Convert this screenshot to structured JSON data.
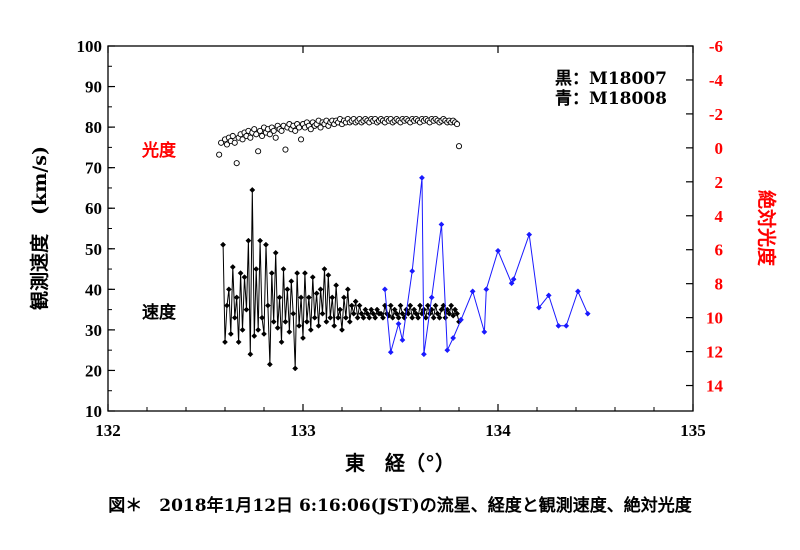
{
  "caption": "図＊　2018年1月12日 6:16:06(JST)の流星、経度と観測速度、絶対光度",
  "chart_data": {
    "type": "scatter",
    "xlabel": "東　経（°）",
    "ylabel": "観測速度　(km/s)",
    "y2label": "絶対光度",
    "xlim": [
      132,
      135
    ],
    "ylim": [
      10,
      100
    ],
    "y2lim": [
      -6,
      15.5
    ],
    "y2_inverted": true,
    "x_ticks": [
      "132",
      "133",
      "134",
      "135"
    ],
    "y_ticks": [
      "10",
      "20",
      "30",
      "40",
      "50",
      "60",
      "70",
      "80",
      "90",
      "100"
    ],
    "y2_ticks": [
      "-6",
      "-4",
      "-2",
      "0",
      "2",
      "4",
      "6",
      "8",
      "10",
      "12",
      "14"
    ],
    "legend": {
      "line1": "黒：M18007",
      "line2": "青：M18008",
      "position": "top-right"
    },
    "annotations": {
      "brightness": "光度",
      "speed": "速度"
    },
    "colors": {
      "black_series": "#000000",
      "blue_series": "#1a1aff",
      "y2_axis": "#ff0000",
      "brightness_label": "#ff0000"
    },
    "series": [
      {
        "name": "黒：M18007",
        "role": "速度",
        "color": "#000000",
        "marker": "diamond-filled",
        "points": [
          [
            132.59,
            51.0
          ],
          [
            132.6,
            27.0
          ],
          [
            132.61,
            36.0
          ],
          [
            132.62,
            40.0
          ],
          [
            132.63,
            29.0
          ],
          [
            132.64,
            45.5
          ],
          [
            132.65,
            33.0
          ],
          [
            132.66,
            38.0
          ],
          [
            132.67,
            27.0
          ],
          [
            132.68,
            44.0
          ],
          [
            132.69,
            30.0
          ],
          [
            132.7,
            43.0
          ],
          [
            132.71,
            35.0
          ],
          [
            132.72,
            52.0
          ],
          [
            132.73,
            24.0
          ],
          [
            132.74,
            64.5
          ],
          [
            132.75,
            28.5
          ],
          [
            132.76,
            45.0
          ],
          [
            132.77,
            30.0
          ],
          [
            132.78,
            52.0
          ],
          [
            132.79,
            33.0
          ],
          [
            132.8,
            29.0
          ],
          [
            132.81,
            51.0
          ],
          [
            132.82,
            36.0
          ],
          [
            132.83,
            21.5
          ],
          [
            132.84,
            44.0
          ],
          [
            132.85,
            32.0
          ],
          [
            132.86,
            49.0
          ],
          [
            132.87,
            30.5
          ],
          [
            132.88,
            38.0
          ],
          [
            132.89,
            27.0
          ],
          [
            132.9,
            45.0
          ],
          [
            132.91,
            32.0
          ],
          [
            132.92,
            40.0
          ],
          [
            132.93,
            29.5
          ],
          [
            132.94,
            42.0
          ],
          [
            132.95,
            34.0
          ],
          [
            132.96,
            20.5
          ],
          [
            132.97,
            44.0
          ],
          [
            132.98,
            31.0
          ],
          [
            132.99,
            38.0
          ],
          [
            133.0,
            28.0
          ],
          [
            133.01,
            44.0
          ],
          [
            133.02,
            32.0
          ],
          [
            133.03,
            38.0
          ],
          [
            133.04,
            30.0
          ],
          [
            133.05,
            43.0
          ],
          [
            133.06,
            33.0
          ],
          [
            133.07,
            39.0
          ],
          [
            133.08,
            31.0
          ],
          [
            133.09,
            40.0
          ],
          [
            133.1,
            34.0
          ],
          [
            133.11,
            45.0
          ],
          [
            133.12,
            32.0
          ],
          [
            133.13,
            43.5
          ],
          [
            133.14,
            33.0
          ],
          [
            133.15,
            38.0
          ],
          [
            133.16,
            31.0
          ],
          [
            133.17,
            41.0
          ],
          [
            133.18,
            33.0
          ],
          [
            133.19,
            35.0
          ],
          [
            133.2,
            30.0
          ],
          [
            133.21,
            38.0
          ],
          [
            133.22,
            33.0
          ],
          [
            133.23,
            40.0
          ],
          [
            133.24,
            32.0
          ],
          [
            133.25,
            36.0
          ],
          [
            133.26,
            34.0
          ],
          [
            133.27,
            37.0
          ],
          [
            133.28,
            33.0
          ],
          [
            133.29,
            36.0
          ],
          [
            133.3,
            34.0
          ],
          [
            133.31,
            33.0
          ],
          [
            133.32,
            35.0
          ],
          [
            133.33,
            34.0
          ],
          [
            133.34,
            33.0
          ],
          [
            133.35,
            35.0
          ],
          [
            133.36,
            34.0
          ],
          [
            133.37,
            33.0
          ],
          [
            133.38,
            35.0
          ],
          [
            133.39,
            34.0
          ],
          [
            133.4,
            34.0
          ],
          [
            133.41,
            33.0
          ],
          [
            133.42,
            36.0
          ],
          [
            133.43,
            34.0
          ],
          [
            133.44,
            33.5
          ],
          [
            133.45,
            36.0
          ],
          [
            133.46,
            33.0
          ],
          [
            133.47,
            35.0
          ],
          [
            133.48,
            34.0
          ],
          [
            133.49,
            33.0
          ],
          [
            133.5,
            36.0
          ],
          [
            133.51,
            34.0
          ],
          [
            133.52,
            33.0
          ],
          [
            133.53,
            35.0
          ],
          [
            133.54,
            34.0
          ],
          [
            133.55,
            36.0
          ],
          [
            133.56,
            33.0
          ],
          [
            133.57,
            35.0
          ],
          [
            133.58,
            34.0
          ],
          [
            133.59,
            33.0
          ],
          [
            133.6,
            36.0
          ],
          [
            133.61,
            34.0
          ],
          [
            133.62,
            35.0
          ],
          [
            133.63,
            33.0
          ],
          [
            133.64,
            36.0
          ],
          [
            133.65,
            34.0
          ],
          [
            133.66,
            35.0
          ],
          [
            133.67,
            33.0
          ],
          [
            133.68,
            36.0
          ],
          [
            133.69,
            34.0
          ],
          [
            133.7,
            33.0
          ],
          [
            133.71,
            35.0
          ],
          [
            133.72,
            36.0
          ],
          [
            133.73,
            33.0
          ],
          [
            133.74,
            35.0
          ],
          [
            133.75,
            34.0
          ],
          [
            133.76,
            36.0
          ],
          [
            133.77,
            33.5
          ],
          [
            133.78,
            35.0
          ],
          [
            133.79,
            34.0
          ],
          [
            133.8,
            32.0
          ]
        ]
      },
      {
        "name": "青：M18008",
        "role": "速度",
        "color": "#1a1aff",
        "marker": "diamond-filled",
        "points": [
          [
            133.42,
            40.0
          ],
          [
            133.45,
            24.5
          ],
          [
            133.49,
            31.5
          ],
          [
            133.51,
            27.5
          ],
          [
            133.56,
            44.5
          ],
          [
            133.61,
            67.5
          ],
          [
            133.62,
            24.0
          ],
          [
            133.66,
            38.0
          ],
          [
            133.71,
            56.0
          ],
          [
            133.74,
            25.0
          ],
          [
            133.77,
            28.0
          ],
          [
            133.81,
            32.5
          ],
          [
            133.87,
            39.5
          ],
          [
            133.93,
            29.5
          ],
          [
            133.94,
            40.0
          ],
          [
            134.0,
            49.5
          ],
          [
            134.07,
            41.5
          ],
          [
            134.08,
            42.5
          ],
          [
            134.16,
            53.5
          ],
          [
            134.21,
            35.5
          ],
          [
            134.26,
            38.5
          ],
          [
            134.31,
            31.0
          ],
          [
            134.35,
            31.0
          ],
          [
            134.41,
            39.5
          ],
          [
            134.46,
            34.0
          ]
        ]
      },
      {
        "name": "黒：M18007",
        "role": "光度",
        "color": "#000000",
        "marker": "circle-open",
        "axis": "y2",
        "points": [
          [
            132.57,
            0.4
          ],
          [
            132.58,
            -0.3
          ],
          [
            132.6,
            -0.5
          ],
          [
            132.61,
            -0.2
          ],
          [
            132.62,
            -0.6
          ],
          [
            132.63,
            -0.4
          ],
          [
            132.64,
            -0.7
          ],
          [
            132.65,
            -0.3
          ],
          [
            132.66,
            0.9
          ],
          [
            132.67,
            -0.6
          ],
          [
            132.68,
            -0.8
          ],
          [
            132.69,
            -0.5
          ],
          [
            132.7,
            -0.9
          ],
          [
            132.71,
            -0.7
          ],
          [
            132.72,
            -1.0
          ],
          [
            132.73,
            -0.6
          ],
          [
            132.74,
            -0.9
          ],
          [
            132.75,
            -1.1
          ],
          [
            132.76,
            -0.8
          ],
          [
            132.77,
            0.2
          ],
          [
            132.78,
            -1.0
          ],
          [
            132.79,
            -0.7
          ],
          [
            132.8,
            -1.2
          ],
          [
            132.81,
            -0.9
          ],
          [
            132.82,
            -1.1
          ],
          [
            132.83,
            -0.8
          ],
          [
            132.84,
            -1.2
          ],
          [
            132.85,
            -1.0
          ],
          [
            132.86,
            -0.6
          ],
          [
            132.87,
            -1.3
          ],
          [
            132.88,
            -1.1
          ],
          [
            132.89,
            -1.0
          ],
          [
            132.9,
            -1.3
          ],
          [
            132.91,
            0.1
          ],
          [
            132.92,
            -1.2
          ],
          [
            132.93,
            -1.4
          ],
          [
            132.94,
            -1.1
          ],
          [
            132.95,
            -1.3
          ],
          [
            132.96,
            -1.0
          ],
          [
            132.97,
            -1.4
          ],
          [
            132.98,
            -1.2
          ],
          [
            132.99,
            -0.5
          ],
          [
            133.0,
            -1.4
          ],
          [
            133.01,
            -1.2
          ],
          [
            133.02,
            -1.5
          ],
          [
            133.03,
            -1.3
          ],
          [
            133.04,
            -1.1
          ],
          [
            133.05,
            -1.5
          ],
          [
            133.06,
            -1.3
          ],
          [
            133.07,
            -1.4
          ],
          [
            133.08,
            -1.6
          ],
          [
            133.09,
            -1.2
          ],
          [
            133.1,
            -1.5
          ],
          [
            133.11,
            -1.4
          ],
          [
            133.12,
            -1.6
          ],
          [
            133.13,
            -1.3
          ],
          [
            133.14,
            -1.5
          ],
          [
            133.15,
            -1.6
          ],
          [
            133.16,
            -1.4
          ],
          [
            133.17,
            -1.6
          ],
          [
            133.18,
            -1.5
          ],
          [
            133.19,
            -1.7
          ],
          [
            133.2,
            -1.4
          ],
          [
            133.21,
            -1.6
          ],
          [
            133.22,
            -1.5
          ],
          [
            133.23,
            -1.7
          ],
          [
            133.24,
            -1.5
          ],
          [
            133.25,
            -1.6
          ],
          [
            133.26,
            -1.7
          ],
          [
            133.27,
            -1.5
          ],
          [
            133.28,
            -1.6
          ],
          [
            133.29,
            -1.7
          ],
          [
            133.3,
            -1.5
          ],
          [
            133.31,
            -1.6
          ],
          [
            133.32,
            -1.7
          ],
          [
            133.33,
            -1.6
          ],
          [
            133.34,
            -1.5
          ],
          [
            133.35,
            -1.7
          ],
          [
            133.36,
            -1.6
          ],
          [
            133.37,
            -1.7
          ],
          [
            133.38,
            -1.5
          ],
          [
            133.39,
            -1.6
          ],
          [
            133.4,
            -1.7
          ],
          [
            133.41,
            -1.6
          ],
          [
            133.42,
            -1.5
          ],
          [
            133.43,
            -1.7
          ],
          [
            133.44,
            -1.6
          ],
          [
            133.45,
            -1.7
          ],
          [
            133.46,
            -1.5
          ],
          [
            133.47,
            -1.6
          ],
          [
            133.48,
            -1.7
          ],
          [
            133.49,
            -1.6
          ],
          [
            133.5,
            -1.5
          ],
          [
            133.51,
            -1.7
          ],
          [
            133.52,
            -1.6
          ],
          [
            133.53,
            -1.7
          ],
          [
            133.54,
            -1.6
          ],
          [
            133.55,
            -1.5
          ],
          [
            133.56,
            -1.7
          ],
          [
            133.57,
            -1.6
          ],
          [
            133.58,
            -1.7
          ],
          [
            133.59,
            -1.6
          ],
          [
            133.6,
            -1.5
          ],
          [
            133.61,
            -1.7
          ],
          [
            133.62,
            -1.6
          ],
          [
            133.63,
            -1.7
          ],
          [
            133.64,
            -1.6
          ],
          [
            133.65,
            -1.5
          ],
          [
            133.66,
            -1.7
          ],
          [
            133.67,
            -1.6
          ],
          [
            133.68,
            -1.7
          ],
          [
            133.69,
            -1.6
          ],
          [
            133.7,
            -1.5
          ],
          [
            133.71,
            -1.6
          ],
          [
            133.72,
            -1.7
          ],
          [
            133.73,
            -1.6
          ],
          [
            133.74,
            -1.5
          ],
          [
            133.75,
            -1.6
          ],
          [
            133.76,
            -1.5
          ],
          [
            133.77,
            -1.6
          ],
          [
            133.78,
            -1.5
          ],
          [
            133.79,
            -1.4
          ],
          [
            133.8,
            -0.1
          ]
        ]
      }
    ]
  }
}
